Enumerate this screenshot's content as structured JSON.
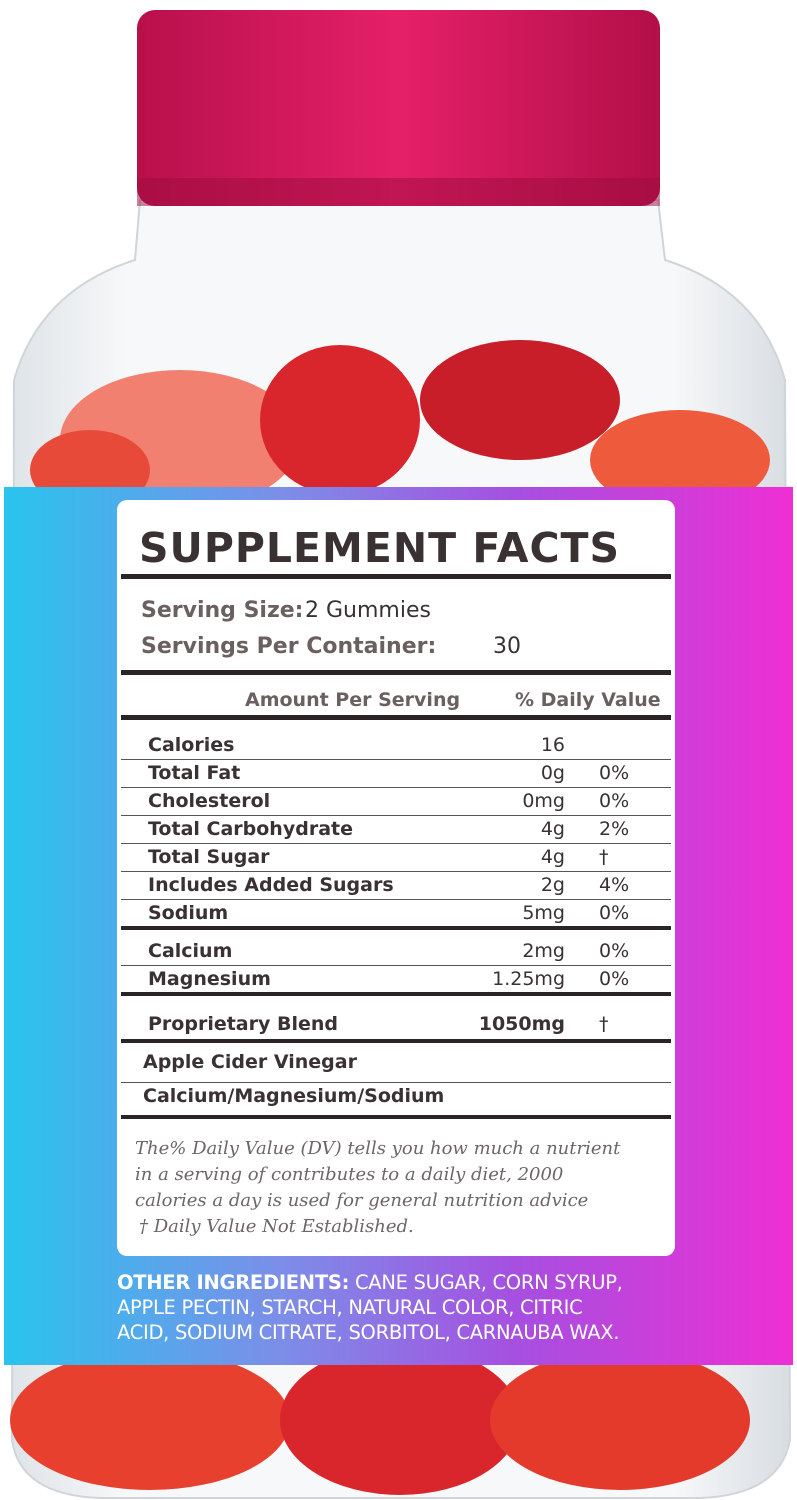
{
  "facts": {
    "title": "SUPPLEMENT FACTS",
    "serving_size_label": "Serving Size:",
    "serving_size": "2 Gummies",
    "servings_label": "Servings Per Container:",
    "servings": "30",
    "header": {
      "amount": "Amount Per Serving",
      "dv": "% Daily Value"
    },
    "sections": [
      [
        {
          "name": "Calories",
          "amount": "16"
        },
        {
          "name": "Total Fat",
          "amount": "0g",
          "dv": "0%"
        },
        {
          "name": "Cholesterol",
          "amount": "0mg",
          "dv": "0%"
        },
        {
          "name": "Total Carbohydrate",
          "amount": "4g",
          "dv": "2%"
        },
        {
          "name": "Total Sugar",
          "amount": "4g",
          "dv": "†"
        },
        {
          "name": "Includes Added Sugars",
          "amount": "2g",
          "dv": "4%"
        },
        {
          "name": "Sodium",
          "amount": "5mg",
          "dv": "0%"
        }
      ],
      [
        {
          "name": "Calcium",
          "amount": "2mg",
          "dv": "0%"
        },
        {
          "name": "Magnesium",
          "amount": "1.25mg",
          "dv": "0%"
        }
      ],
      [
        {
          "name": "Proprietary Blend",
          "amount": "1050mg",
          "dv": "†"
        }
      ],
      [
        {
          "name": "Apple Cider Vinegar"
        },
        {
          "name": "Calcium/Magnesium/Sodium"
        }
      ]
    ],
    "footnote": [
      "The% Daily Value (DV) tells you how much a nutrient",
      "in a serving of contributes to a daily diet, 2000",
      "calories a day is used for general nutrition advice",
      "† Daily Value Not Established."
    ]
  },
  "other_ingredients": {
    "label": "OTHER INGREDIENTS:",
    "lines": [
      "CANE SUGAR, CORN SYRUP,",
      "APPLE PECTIN, STARCH, NATURAL COLOR, CITRIC",
      "ACID, SODIUM CITRATE, SORBITOL, CARNAUBA WAX."
    ]
  }
}
